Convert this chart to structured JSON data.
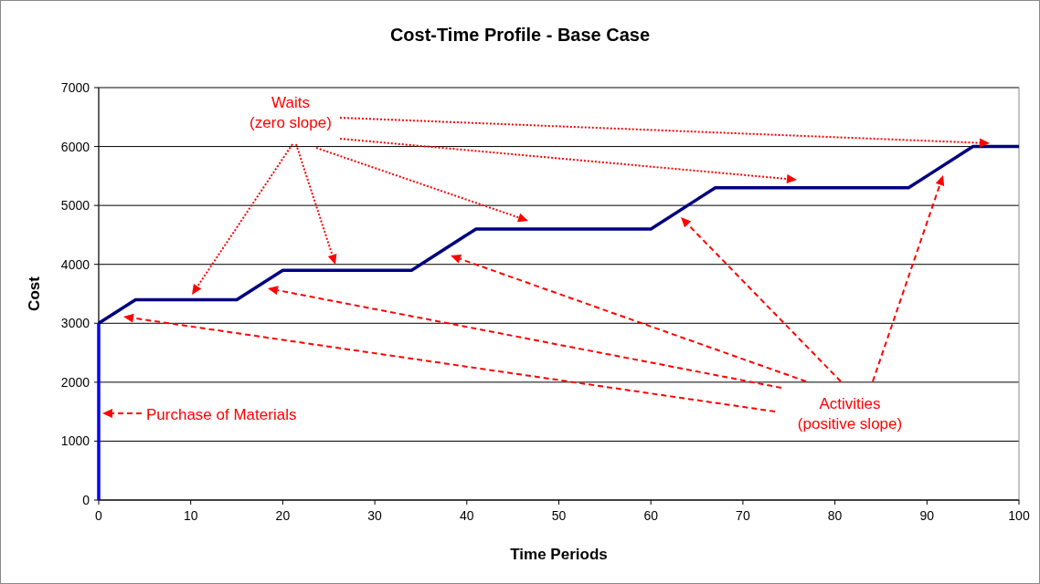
{
  "chart_data": {
    "type": "line",
    "title": "Cost-Time Profile - Base Case",
    "xlabel": "Time Periods",
    "ylabel": "Cost",
    "series": [
      {
        "color": "#0000ff",
        "x": [
          0,
          0
        ],
        "values": [
          0,
          3000
        ]
      },
      {
        "color": "#000080",
        "x": [
          0,
          4,
          15,
          20,
          34,
          41,
          60,
          67,
          88,
          95,
          100
        ],
        "values": [
          3000,
          3400,
          3400,
          3900,
          3900,
          4600,
          4600,
          5300,
          5300,
          6000,
          6000
        ]
      }
    ],
    "xlim": [
      0,
      100
    ],
    "xticks": [
      0,
      10,
      20,
      30,
      40,
      50,
      60,
      70,
      80,
      90,
      100
    ],
    "ylim": [
      0,
      7000
    ],
    "yticks": [
      0,
      1000,
      2000,
      3000,
      4000,
      5000,
      6000,
      7000
    ],
    "grid": "y",
    "marker": "none",
    "line_style": "solid",
    "annotations": [
      "Waits\n(zero slope)",
      "Purchase of Materials",
      "Activities\n(positive slope)"
    ]
  }
}
